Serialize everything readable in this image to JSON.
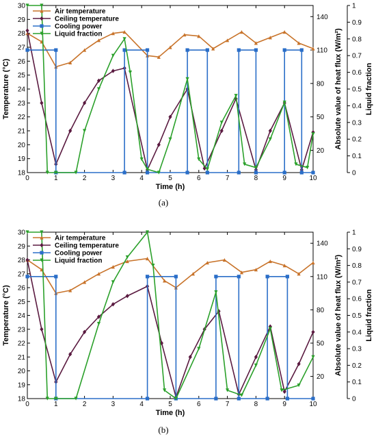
{
  "chart_data": [
    {
      "type": "line",
      "caption": "(a)",
      "xlabel": "Time (h)",
      "ylabel_left": "Temperature (°C)",
      "ylabel_right_1": "Absolute value of heat flux (W/m²)",
      "ylabel_right_2": "Liquid fraction",
      "xlim": [
        0,
        10
      ],
      "ylim_left": [
        18,
        30
      ],
      "ylim_right_1": [
        0,
        150
      ],
      "ylim_right_2": [
        0,
        1
      ],
      "xticks": [
        0,
        1,
        2,
        3,
        4,
        5,
        6,
        7,
        8,
        9,
        10
      ],
      "yticks_left": [
        18,
        19,
        20,
        21,
        22,
        23,
        24,
        25,
        26,
        27,
        28,
        29,
        30
      ],
      "yticks_right_1": [
        20,
        50,
        80,
        110,
        140
      ],
      "yticks_right_2": [
        0,
        0.1,
        0.2,
        0.3,
        0.4,
        0.5,
        0.6,
        0.7,
        0.8,
        0.9,
        1
      ],
      "legend_position": "top-left",
      "series": [
        {
          "name": "Air temperature",
          "axis": "left",
          "color": "#c8732a",
          "marker": "triangle",
          "x": [
            0,
            0.5,
            1.0,
            1.5,
            2.0,
            2.5,
            3.0,
            3.4,
            4.2,
            4.6,
            5.0,
            5.5,
            6.0,
            6.5,
            7.0,
            7.5,
            8.0,
            8.5,
            9.0,
            9.5,
            10.0
          ],
          "y": [
            28.0,
            27.4,
            25.6,
            25.9,
            26.8,
            27.5,
            28.0,
            28.1,
            26.4,
            26.3,
            27.0,
            27.9,
            27.8,
            26.9,
            27.5,
            28.1,
            27.3,
            27.7,
            28.1,
            27.3,
            26.9
          ]
        },
        {
          "name": "Ceiling temperature",
          "axis": "left",
          "color": "#5a1a40",
          "marker": "diamond",
          "x": [
            0,
            0.5,
            1.0,
            1.5,
            2.0,
            2.5,
            3.0,
            3.4,
            4.2,
            4.6,
            5.0,
            5.6,
            6.2,
            6.8,
            7.3,
            8.0,
            8.5,
            9.0,
            9.6,
            10.0
          ],
          "y": [
            28.2,
            23.0,
            18.6,
            21.0,
            23.0,
            24.6,
            25.3,
            25.5,
            18.2,
            20.0,
            22.0,
            24.0,
            18.3,
            21.0,
            23.3,
            18.2,
            21.0,
            23.0,
            18.2,
            20.9
          ]
        },
        {
          "name": "Cooling power",
          "axis": "right_1",
          "color": "#2a6ec8",
          "marker": "square",
          "x": [
            0,
            1.0,
            1.0,
            3.4,
            3.4,
            4.2,
            4.2,
            5.6,
            5.6,
            6.3,
            6.3,
            7.4,
            7.4,
            8.0,
            8.0,
            9.0,
            9.0,
            9.6,
            9.6,
            10.0
          ],
          "y": [
            110,
            110,
            0,
            0,
            110,
            110,
            0,
            0,
            110,
            110,
            0,
            0,
            110,
            110,
            0,
            0,
            110,
            110,
            0,
            0
          ]
        },
        {
          "name": "Liquid fraction",
          "axis": "right_2",
          "color": "#2aa02a",
          "marker": "triangle-down",
          "x": [
            0,
            0.5,
            0.7,
            1.0,
            1.7,
            2.0,
            2.5,
            3.0,
            3.4,
            3.6,
            4.0,
            4.2,
            4.6,
            5.0,
            5.6,
            6.0,
            6.3,
            6.8,
            7.3,
            7.6,
            8.0,
            8.5,
            9.0,
            9.4,
            9.8,
            10.0
          ],
          "y": [
            1.0,
            1.0,
            0.0,
            0.0,
            0.0,
            0.25,
            0.5,
            0.7,
            0.8,
            0.6,
            0.08,
            0.02,
            0.0,
            0.2,
            0.56,
            0.08,
            0.02,
            0.3,
            0.46,
            0.05,
            0.03,
            0.2,
            0.42,
            0.05,
            0.03,
            0.23
          ]
        }
      ]
    },
    {
      "type": "line",
      "caption": "(b)",
      "xlabel": "Time (h)",
      "ylabel_left": "Temperature (°C)",
      "ylabel_right_1": "Absolute value of heat flux (W/m²)",
      "ylabel_right_2": "Liquid fraction",
      "xlim": [
        0,
        10
      ],
      "ylim_left": [
        18,
        30
      ],
      "ylim_right_1": [
        0,
        150
      ],
      "ylim_right_2": [
        0,
        1
      ],
      "xticks": [
        0,
        1,
        2,
        3,
        4,
        5,
        6,
        7,
        8,
        9,
        10
      ],
      "yticks_left": [
        18,
        19,
        20,
        21,
        22,
        23,
        24,
        25,
        26,
        27,
        28,
        29,
        30
      ],
      "yticks_right_1": [
        20,
        50,
        80,
        110,
        140
      ],
      "yticks_right_2": [
        0,
        0.1,
        0.2,
        0.3,
        0.4,
        0.5,
        0.6,
        0.7,
        0.8,
        0.9,
        1
      ],
      "legend_position": "top-left",
      "series": [
        {
          "name": "Air temperature",
          "axis": "left",
          "color": "#c8732a",
          "marker": "triangle",
          "x": [
            0,
            0.5,
            1.0,
            1.5,
            2.0,
            2.5,
            3.0,
            3.5,
            4.2,
            4.8,
            5.2,
            5.8,
            6.3,
            6.9,
            7.5,
            8.0,
            8.5,
            9.0,
            9.5,
            10.0
          ],
          "y": [
            28.0,
            27.3,
            25.6,
            25.8,
            26.4,
            27.0,
            27.5,
            27.9,
            28.1,
            26.5,
            26.0,
            27.0,
            27.8,
            28.0,
            27.1,
            27.3,
            27.9,
            27.6,
            27.0,
            27.8
          ]
        },
        {
          "name": "Ceiling temperature",
          "axis": "left",
          "color": "#5a1a40",
          "marker": "diamond",
          "x": [
            0,
            0.5,
            1.0,
            1.5,
            2.0,
            2.5,
            3.0,
            3.5,
            4.2,
            4.7,
            5.2,
            5.7,
            6.2,
            6.7,
            7.4,
            8.0,
            8.5,
            9.0,
            9.5,
            10.0
          ],
          "y": [
            28.0,
            23.0,
            19.2,
            21.2,
            22.8,
            23.9,
            24.8,
            25.4,
            26.1,
            22.0,
            18.1,
            21.0,
            23.0,
            24.3,
            18.3,
            21.0,
            23.2,
            18.5,
            20.5,
            22.8
          ]
        },
        {
          "name": "Cooling power",
          "axis": "right_1",
          "color": "#2a6ec8",
          "marker": "square",
          "x": [
            0,
            1.0,
            1.0,
            4.2,
            4.2,
            5.2,
            5.2,
            6.6,
            6.6,
            7.4,
            7.4,
            8.4,
            8.4,
            9.1,
            9.1,
            10.0
          ],
          "y": [
            110,
            110,
            0,
            0,
            110,
            110,
            0,
            0,
            110,
            110,
            0,
            0,
            110,
            110,
            0,
            0
          ]
        },
        {
          "name": "Liquid fraction",
          "axis": "right_2",
          "color": "#2aa02a",
          "marker": "triangle-down",
          "x": [
            0,
            0.5,
            0.7,
            1.0,
            1.7,
            2.5,
            3.0,
            3.5,
            4.2,
            4.4,
            4.8,
            5.2,
            6.0,
            6.6,
            7.0,
            7.5,
            8.0,
            8.5,
            8.9,
            9.5,
            10.0
          ],
          "y": [
            1.0,
            1.0,
            0.0,
            0.0,
            0.0,
            0.45,
            0.7,
            0.85,
            1.0,
            0.8,
            0.05,
            0.0,
            0.3,
            0.64,
            0.05,
            0.02,
            0.2,
            0.42,
            0.05,
            0.08,
            0.25
          ]
        }
      ]
    }
  ]
}
